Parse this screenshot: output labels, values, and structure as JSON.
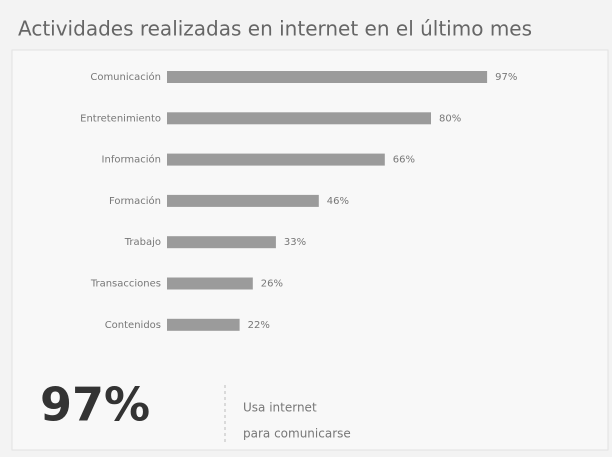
{
  "chart_data": {
    "type": "bar",
    "orientation": "horizontal",
    "title": "Actividades realizadas en internet en el último mes",
    "categories": [
      "Comunicación",
      "Entretenimiento",
      "Información",
      "Formación",
      "Trabajo",
      "Transacciones",
      "Contenidos"
    ],
    "values": [
      97,
      80,
      66,
      46,
      33,
      26,
      22
    ],
    "value_labels": [
      "97%",
      "80%",
      "66%",
      "46%",
      "33%",
      "26%",
      "22%"
    ],
    "color": "#9b9b9b",
    "callout": {
      "value": "97%",
      "lines": [
        "Usa internet",
        "para comunicarse"
      ]
    }
  }
}
